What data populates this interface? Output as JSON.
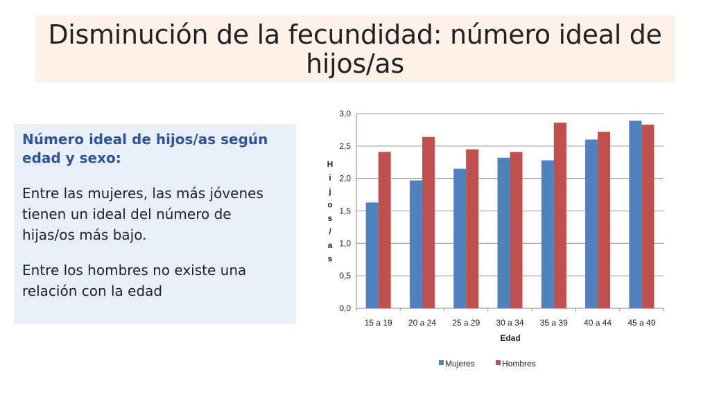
{
  "slide": {
    "title": "Disminución de la fecundidad: número ideal de hijos/as"
  },
  "textbox": {
    "heading": "Número ideal de hijos/as según edad y sexo:",
    "paragraph1": "Entre las mujeres, las más jóvenes tienen un ideal del número de hijas/os más bajo.",
    "paragraph2": "Entre los hombres no existe una relación con la edad"
  },
  "colors": {
    "mujeres": "#4f81bd",
    "hombres": "#c0504d",
    "title_band": "#fdf1e8",
    "textbox": "#e9eff8",
    "heading": "#2e5597"
  },
  "chart_data": {
    "type": "bar",
    "categories": [
      "15 a 19",
      "20 a 24",
      "25 a 29",
      "30 a 34",
      "35 a 39",
      "40 a 44",
      "45 a 49"
    ],
    "series": [
      {
        "name": "Mujeres",
        "color": "#4f81bd",
        "values": [
          1.63,
          1.97,
          2.15,
          2.32,
          2.28,
          2.6,
          2.89
        ]
      },
      {
        "name": "Hombres",
        "color": "#c0504d",
        "values": [
          2.41,
          2.64,
          2.45,
          2.41,
          2.86,
          2.72,
          2.83
        ]
      }
    ],
    "xlabel": "Edad",
    "ylabel": "Hijos/as",
    "ylim": [
      0,
      3.0
    ],
    "yticks": [
      "0,0",
      "0,5",
      "1,0",
      "1,5",
      "2,0",
      "2,5",
      "3,0"
    ],
    "grid": true,
    "legend_position": "bottom"
  }
}
